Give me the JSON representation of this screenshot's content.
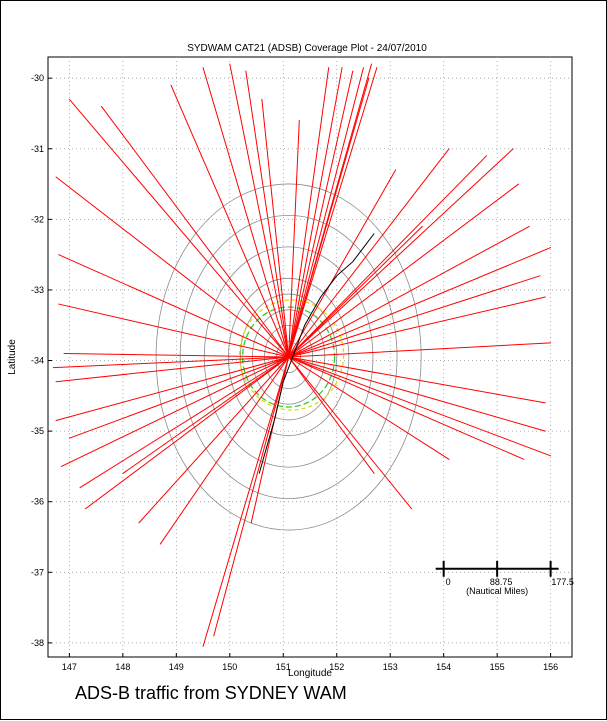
{
  "caption": "ADS-B traffic from SYDNEY WAM",
  "chart_data": {
    "type": "scatter",
    "title": "SYDWAM CAT21 (ADSB) Coverage Plot - 24/07/2010",
    "xlabel": "Longitude",
    "ylabel": "Latitude",
    "xlim": [
      146.6,
      156.4
    ],
    "ylim": [
      -38.2,
      -29.7
    ],
    "x_ticks": [
      "147",
      "148",
      "149",
      "150",
      "151",
      "152",
      "153",
      "154",
      "155",
      "156"
    ],
    "y_ticks": [
      "-30",
      "-31",
      "-32",
      "-33",
      "-34",
      "-35",
      "-36",
      "-37",
      "-38"
    ],
    "grid": "dotted",
    "colors": {
      "tracks": "#ff0000",
      "rings": "#8c8c8c",
      "inner_ring_green": "#33cc33",
      "inner_ring_yellow": "#dddd00",
      "ground": "#000000"
    },
    "radar_center": [
      151.1,
      -33.95
    ],
    "range_ring_radii_nm": [
      20,
      40,
      60,
      80,
      100,
      140,
      180,
      220
    ],
    "scale_bar": {
      "label_0": "0",
      "label_mid": "88.75",
      "label_end": "177.5",
      "unit": "(Nautical Miles)",
      "from_lon": 154.0,
      "to_lon": 156.0,
      "lat": -36.95
    },
    "series": [
      {
        "name": "",
        "hub": [
          151.1,
          -33.95
        ],
        "endpoints": [
          [
            151.85,
            -29.85
          ],
          [
            152.1,
            -29.85
          ],
          [
            152.5,
            -29.85
          ],
          [
            152.65,
            -29.8
          ],
          [
            152.75,
            -29.85
          ],
          [
            152.3,
            -29.9
          ],
          [
            150.3,
            -29.9
          ],
          [
            149.5,
            -29.85
          ],
          [
            148.9,
            -30.1
          ],
          [
            147.0,
            -30.3
          ],
          [
            146.75,
            -31.4
          ],
          [
            147.6,
            -30.4
          ],
          [
            146.8,
            -32.5
          ],
          [
            146.8,
            -33.2
          ],
          [
            146.7,
            -34.1
          ],
          [
            146.75,
            -34.3
          ],
          [
            146.75,
            -34.85
          ],
          [
            147.0,
            -35.1
          ],
          [
            146.85,
            -35.5
          ],
          [
            147.2,
            -35.8
          ],
          [
            147.3,
            -36.1
          ],
          [
            148.3,
            -36.3
          ],
          [
            148.7,
            -36.6
          ],
          [
            149.5,
            -38.05
          ],
          [
            149.7,
            -37.9
          ],
          [
            150.4,
            -36.3
          ],
          [
            152.7,
            -35.6
          ],
          [
            153.4,
            -36.1
          ],
          [
            154.1,
            -35.4
          ],
          [
            155.5,
            -35.4
          ],
          [
            156.0,
            -35.35
          ],
          [
            155.9,
            -34.6
          ],
          [
            156.0,
            -33.75
          ],
          [
            155.9,
            -33.1
          ],
          [
            155.8,
            -32.8
          ],
          [
            156.0,
            -32.4
          ],
          [
            155.6,
            -32.1
          ],
          [
            155.4,
            -31.5
          ],
          [
            155.3,
            -31.0
          ],
          [
            154.8,
            -31.1
          ],
          [
            154.1,
            -31.0
          ],
          [
            153.6,
            -32.1
          ],
          [
            150.6,
            -30.3
          ],
          [
            151.3,
            -30.6
          ],
          [
            152.6,
            -30.0
          ],
          [
            153.1,
            -31.3
          ],
          [
            155.9,
            -35.0
          ],
          [
            148.0,
            -35.6
          ],
          [
            146.9,
            -33.9
          ],
          [
            150.0,
            -29.8
          ]
        ]
      }
    ]
  }
}
